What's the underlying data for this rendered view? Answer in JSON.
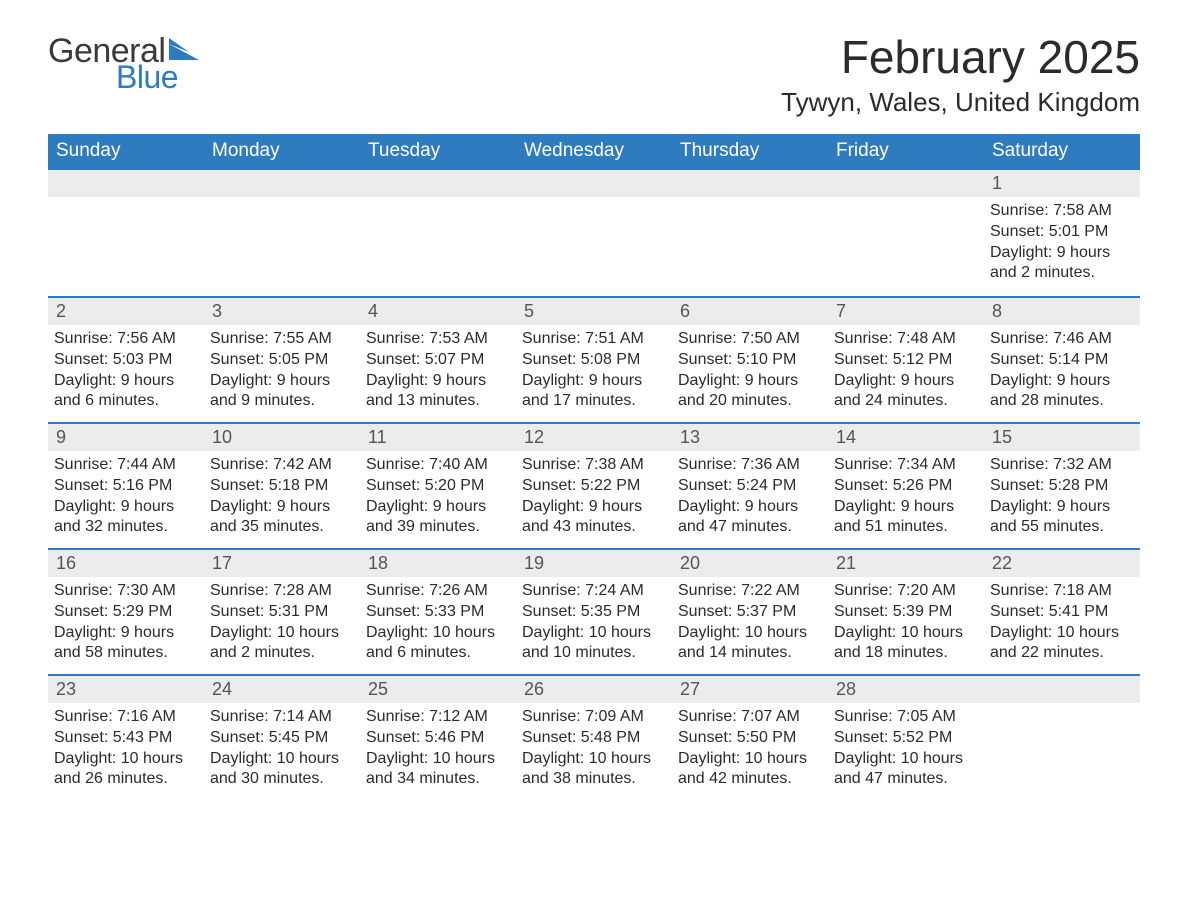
{
  "logo": {
    "text_general": "General",
    "text_blue": "Blue",
    "flag_color": "#2f7bbf",
    "general_color": "#3a3a3a",
    "blue_color": "#2f7bbf"
  },
  "title": "February 2025",
  "location": "Tywyn, Wales, United Kingdom",
  "colors": {
    "header_bg": "#2f7bbf",
    "header_text": "#ffffff",
    "divider": "#2f7bbf",
    "daynum_bg": "#edecec",
    "daynum_text": "#555555",
    "body_text": "#2b2b2b",
    "page_bg": "#ffffff"
  },
  "typography": {
    "month_title_size_pt": 34,
    "location_size_pt": 20,
    "header_size_pt": 14,
    "body_size_pt": 12
  },
  "weekdays": [
    "Sunday",
    "Monday",
    "Tuesday",
    "Wednesday",
    "Thursday",
    "Friday",
    "Saturday"
  ],
  "weeks": [
    [
      null,
      null,
      null,
      null,
      null,
      null,
      {
        "n": "1",
        "lines": [
          "Sunrise: 7:58 AM",
          "Sunset: 5:01 PM",
          "Daylight: 9 hours and 2 minutes."
        ]
      }
    ],
    [
      {
        "n": "2",
        "lines": [
          "Sunrise: 7:56 AM",
          "Sunset: 5:03 PM",
          "Daylight: 9 hours and 6 minutes."
        ]
      },
      {
        "n": "3",
        "lines": [
          "Sunrise: 7:55 AM",
          "Sunset: 5:05 PM",
          "Daylight: 9 hours and 9 minutes."
        ]
      },
      {
        "n": "4",
        "lines": [
          "Sunrise: 7:53 AM",
          "Sunset: 5:07 PM",
          "Daylight: 9 hours and 13 minutes."
        ]
      },
      {
        "n": "5",
        "lines": [
          "Sunrise: 7:51 AM",
          "Sunset: 5:08 PM",
          "Daylight: 9 hours and 17 minutes."
        ]
      },
      {
        "n": "6",
        "lines": [
          "Sunrise: 7:50 AM",
          "Sunset: 5:10 PM",
          "Daylight: 9 hours and 20 minutes."
        ]
      },
      {
        "n": "7",
        "lines": [
          "Sunrise: 7:48 AM",
          "Sunset: 5:12 PM",
          "Daylight: 9 hours and 24 minutes."
        ]
      },
      {
        "n": "8",
        "lines": [
          "Sunrise: 7:46 AM",
          "Sunset: 5:14 PM",
          "Daylight: 9 hours and 28 minutes."
        ]
      }
    ],
    [
      {
        "n": "9",
        "lines": [
          "Sunrise: 7:44 AM",
          "Sunset: 5:16 PM",
          "Daylight: 9 hours and 32 minutes."
        ]
      },
      {
        "n": "10",
        "lines": [
          "Sunrise: 7:42 AM",
          "Sunset: 5:18 PM",
          "Daylight: 9 hours and 35 minutes."
        ]
      },
      {
        "n": "11",
        "lines": [
          "Sunrise: 7:40 AM",
          "Sunset: 5:20 PM",
          "Daylight: 9 hours and 39 minutes."
        ]
      },
      {
        "n": "12",
        "lines": [
          "Sunrise: 7:38 AM",
          "Sunset: 5:22 PM",
          "Daylight: 9 hours and 43 minutes."
        ]
      },
      {
        "n": "13",
        "lines": [
          "Sunrise: 7:36 AM",
          "Sunset: 5:24 PM",
          "Daylight: 9 hours and 47 minutes."
        ]
      },
      {
        "n": "14",
        "lines": [
          "Sunrise: 7:34 AM",
          "Sunset: 5:26 PM",
          "Daylight: 9 hours and 51 minutes."
        ]
      },
      {
        "n": "15",
        "lines": [
          "Sunrise: 7:32 AM",
          "Sunset: 5:28 PM",
          "Daylight: 9 hours and 55 minutes."
        ]
      }
    ],
    [
      {
        "n": "16",
        "lines": [
          "Sunrise: 7:30 AM",
          "Sunset: 5:29 PM",
          "Daylight: 9 hours and 58 minutes."
        ]
      },
      {
        "n": "17",
        "lines": [
          "Sunrise: 7:28 AM",
          "Sunset: 5:31 PM",
          "Daylight: 10 hours and 2 minutes."
        ]
      },
      {
        "n": "18",
        "lines": [
          "Sunrise: 7:26 AM",
          "Sunset: 5:33 PM",
          "Daylight: 10 hours and 6 minutes."
        ]
      },
      {
        "n": "19",
        "lines": [
          "Sunrise: 7:24 AM",
          "Sunset: 5:35 PM",
          "Daylight: 10 hours and 10 minutes."
        ]
      },
      {
        "n": "20",
        "lines": [
          "Sunrise: 7:22 AM",
          "Sunset: 5:37 PM",
          "Daylight: 10 hours and 14 minutes."
        ]
      },
      {
        "n": "21",
        "lines": [
          "Sunrise: 7:20 AM",
          "Sunset: 5:39 PM",
          "Daylight: 10 hours and 18 minutes."
        ]
      },
      {
        "n": "22",
        "lines": [
          "Sunrise: 7:18 AM",
          "Sunset: 5:41 PM",
          "Daylight: 10 hours and 22 minutes."
        ]
      }
    ],
    [
      {
        "n": "23",
        "lines": [
          "Sunrise: 7:16 AM",
          "Sunset: 5:43 PM",
          "Daylight: 10 hours and 26 minutes."
        ]
      },
      {
        "n": "24",
        "lines": [
          "Sunrise: 7:14 AM",
          "Sunset: 5:45 PM",
          "Daylight: 10 hours and 30 minutes."
        ]
      },
      {
        "n": "25",
        "lines": [
          "Sunrise: 7:12 AM",
          "Sunset: 5:46 PM",
          "Daylight: 10 hours and 34 minutes."
        ]
      },
      {
        "n": "26",
        "lines": [
          "Sunrise: 7:09 AM",
          "Sunset: 5:48 PM",
          "Daylight: 10 hours and 38 minutes."
        ]
      },
      {
        "n": "27",
        "lines": [
          "Sunrise: 7:07 AM",
          "Sunset: 5:50 PM",
          "Daylight: 10 hours and 42 minutes."
        ]
      },
      {
        "n": "28",
        "lines": [
          "Sunrise: 7:05 AM",
          "Sunset: 5:52 PM",
          "Daylight: 10 hours and 47 minutes."
        ]
      },
      null
    ]
  ]
}
